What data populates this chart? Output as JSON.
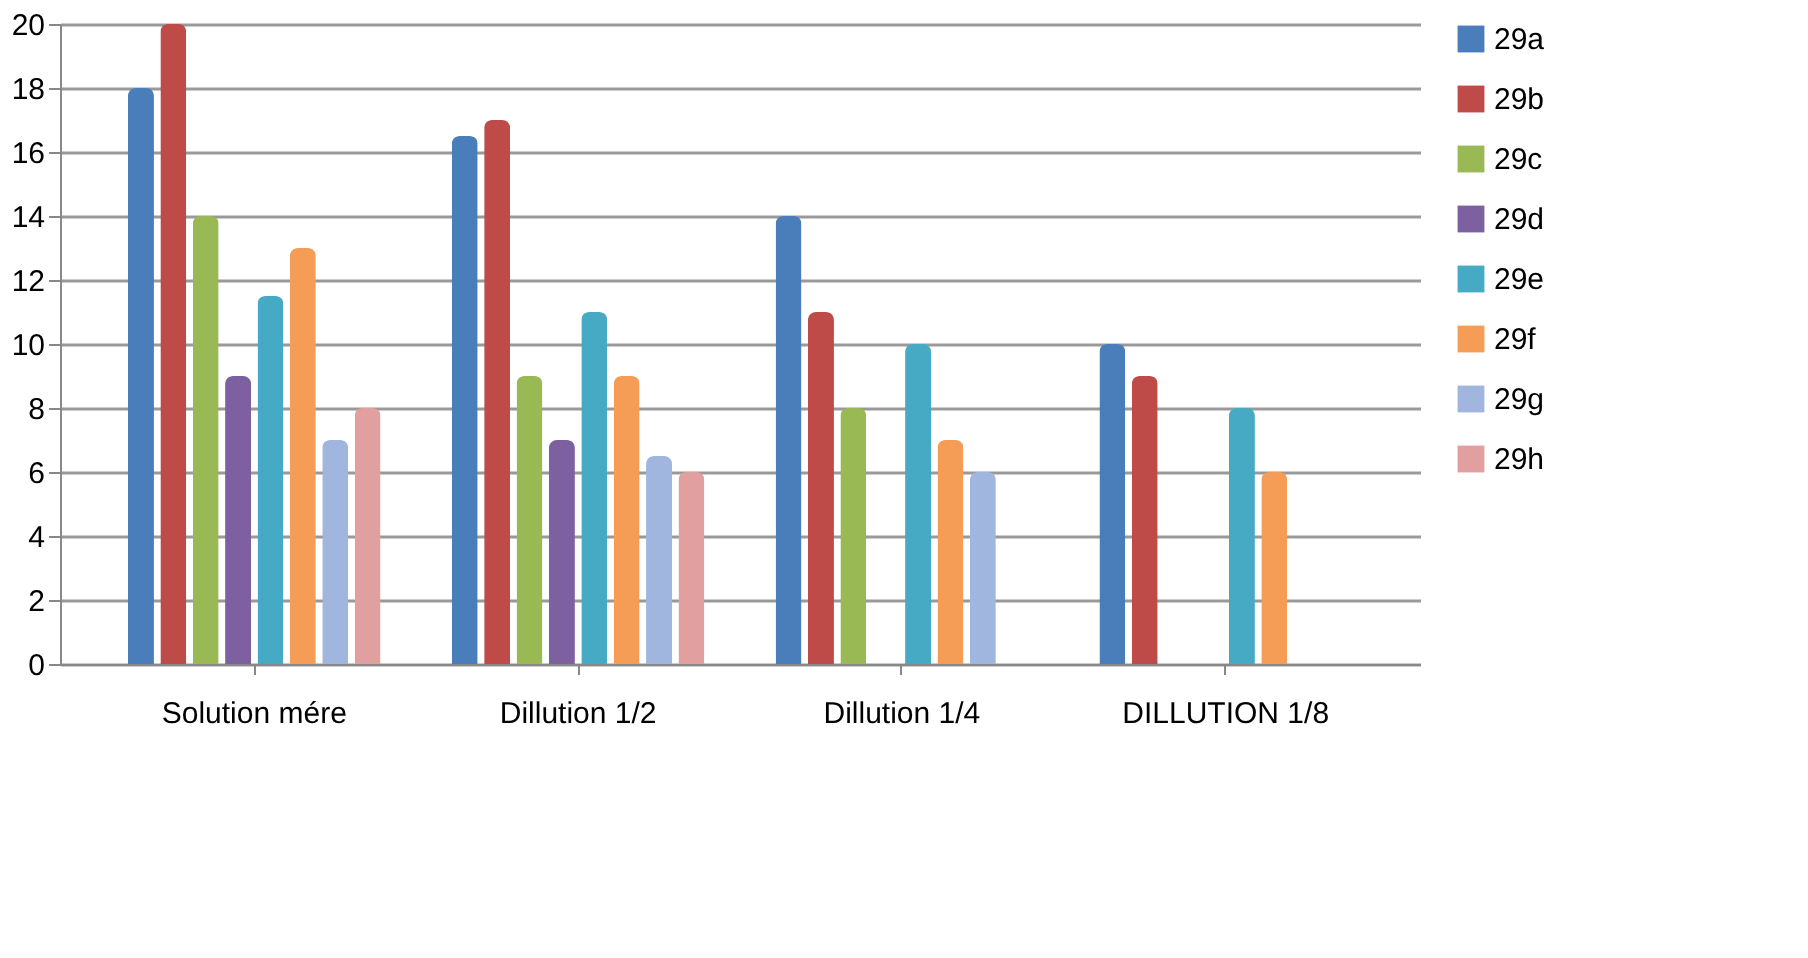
{
  "chart_data": {
    "type": "bar",
    "categories": [
      "Solution mére",
      "Dillution 1/2",
      "Dillution 1/4",
      "DILLUTION 1/8"
    ],
    "series": [
      {
        "name": "29a",
        "color": "#4a7ebb",
        "values": [
          18,
          16.5,
          14,
          10
        ]
      },
      {
        "name": "29b",
        "color": "#be4b48",
        "values": [
          20,
          17,
          11,
          9
        ]
      },
      {
        "name": "29c",
        "color": "#98b954",
        "values": [
          14,
          9,
          8,
          0
        ]
      },
      {
        "name": "29d",
        "color": "#7d60a0",
        "values": [
          9,
          7,
          0,
          0
        ]
      },
      {
        "name": "29e",
        "color": "#46aac5",
        "values": [
          11.5,
          11,
          10,
          8
        ]
      },
      {
        "name": "29f",
        "color": "#f59d56",
        "values": [
          13,
          9,
          7,
          6
        ]
      },
      {
        "name": "29g",
        "color": "#a0b6de",
        "values": [
          7,
          6.5,
          6,
          0
        ]
      },
      {
        "name": "29h",
        "color": "#e29f9f",
        "values": [
          8,
          6,
          0,
          0
        ]
      }
    ],
    "ylim": [
      0,
      20
    ],
    "yticks": [
      0,
      2,
      4,
      6,
      8,
      10,
      12,
      14,
      16,
      18,
      20
    ],
    "grid": "y",
    "legend": "right"
  }
}
